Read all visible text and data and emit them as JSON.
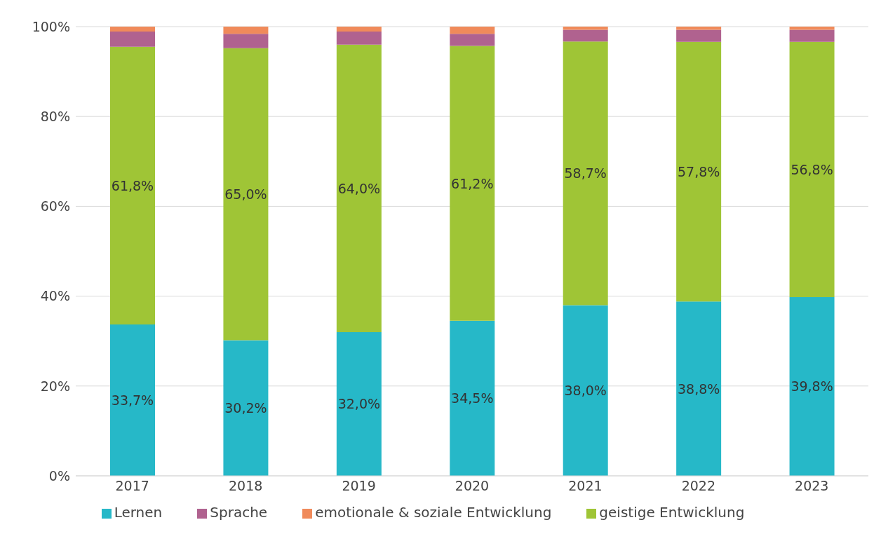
{
  "chart_data": {
    "type": "bar",
    "stacked": true,
    "categories": [
      "2017",
      "2018",
      "2019",
      "2020",
      "2021",
      "2022",
      "2023"
    ],
    "series": [
      {
        "name": "Lernen",
        "color": "#26b8c8",
        "values": [
          33.7,
          30.2,
          32.0,
          34.5,
          38.0,
          38.8,
          39.8
        ],
        "value_labels": [
          "33,7%",
          "30,2%",
          "32,0%",
          "34,5%",
          "38,0%",
          "38,8%",
          "39,8%"
        ]
      },
      {
        "name": "geistige Entwicklung",
        "color": "#9fc536",
        "values": [
          61.8,
          65.0,
          64.0,
          61.2,
          58.7,
          57.8,
          56.8
        ],
        "value_labels": [
          "61,8%",
          "65,0%",
          "64,0%",
          "61,2%",
          "58,7%",
          "57,8%",
          "56,8%"
        ]
      },
      {
        "name": "Sprache",
        "color": "#b0628f",
        "values": [
          3.4,
          3.2,
          2.9,
          2.7,
          2.6,
          2.7,
          2.7
        ]
      },
      {
        "name": "emotionale & soziale Entwicklung",
        "color": "#f08a5a",
        "values": [
          1.1,
          1.6,
          1.1,
          1.6,
          0.7,
          0.7,
          0.7
        ]
      }
    ],
    "ylim": [
      0,
      100
    ],
    "yticks": [
      {
        "value": 0,
        "label": "0%"
      },
      {
        "value": 20,
        "label": "20%"
      },
      {
        "value": 40,
        "label": "40%"
      },
      {
        "value": 60,
        "label": "60%"
      },
      {
        "value": 80,
        "label": "80%"
      },
      {
        "value": 100,
        "label": "100%"
      }
    ],
    "grid": "y",
    "legend": "bottom"
  }
}
